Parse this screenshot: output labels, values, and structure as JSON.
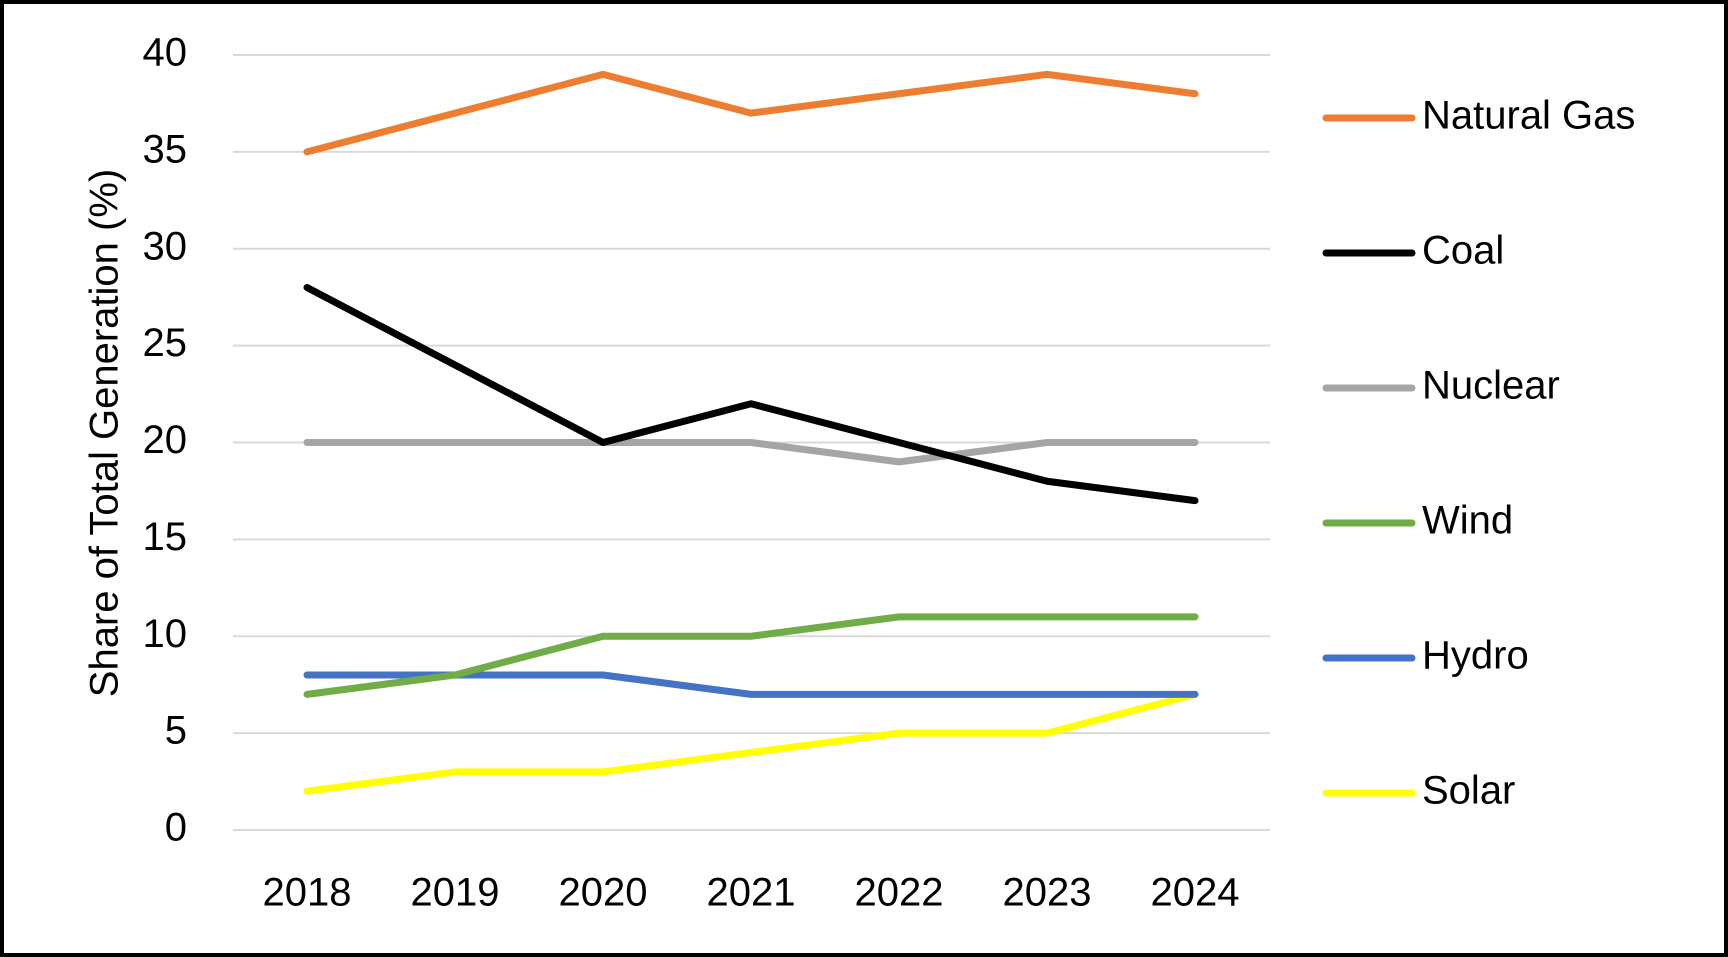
{
  "chart_data": {
    "type": "line",
    "title": "",
    "xlabel": "",
    "ylabel": "Share of Total Generation (%)",
    "categories": [
      "2018",
      "2019",
      "2020",
      "2021",
      "2022",
      "2023",
      "2024"
    ],
    "ylim": [
      0,
      40
    ],
    "yticks": [
      0,
      5,
      10,
      15,
      20,
      25,
      30,
      35,
      40
    ],
    "grid": "horizontal",
    "legend_position": "right",
    "series": [
      {
        "name": "Natural Gas",
        "color": "#ED7D31",
        "values": [
          35,
          37,
          39,
          37,
          38,
          39,
          38
        ]
      },
      {
        "name": "Coal",
        "color": "#000000",
        "values": [
          28,
          24,
          20,
          22,
          20,
          18,
          17
        ]
      },
      {
        "name": "Nuclear",
        "color": "#A5A5A5",
        "values": [
          20,
          20,
          20,
          20,
          19,
          20,
          20
        ]
      },
      {
        "name": "Wind",
        "color": "#70AD47",
        "values": [
          7,
          8,
          10,
          10,
          11,
          11,
          11
        ]
      },
      {
        "name": "Hydro",
        "color": "#4472C4",
        "values": [
          8,
          8,
          8,
          7,
          7,
          7,
          7
        ]
      },
      {
        "name": "Solar",
        "color": "#FFFF00",
        "values": [
          2,
          3,
          3,
          4,
          5,
          5,
          7
        ]
      }
    ]
  }
}
